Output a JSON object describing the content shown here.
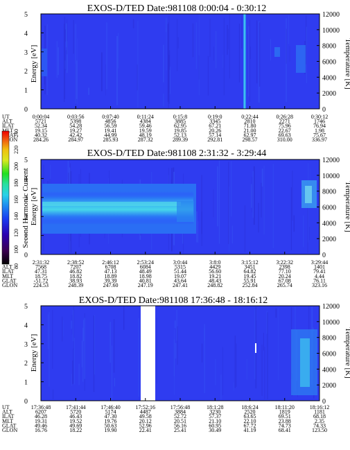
{
  "chart_data": [
    {
      "type": "heatmap",
      "title": "EXOS-D/TED",
      "date_label": "Date:981108",
      "time_range": "0:00:04 - 0:30:12",
      "ylabel": "Energy [eV]",
      "y2label": "Temperature [K]",
      "ylim": [
        0,
        5
      ],
      "y2lim": [
        0,
        12000
      ],
      "yticks": [
        "0",
        "1",
        "2",
        "3",
        "4",
        "5"
      ],
      "y2ticks": [
        "0",
        "2000",
        "4000",
        "6000",
        "8000",
        "10000",
        "12000"
      ],
      "ephemeris_labels": [
        "UT",
        "ALT",
        "ILAT",
        "MLT",
        "GLAT",
        "GLON"
      ],
      "ephemeris_columns": [
        [
          "0:00:04",
          "5721",
          "52.34",
          "19.15",
          "40.32",
          "284.26"
        ],
        [
          "0:03:56",
          "5398",
          "54.28",
          "19.27",
          "42.42",
          "284.97"
        ],
        [
          "0:07:40",
          "4856",
          "56.59",
          "19.41",
          "44.99",
          "285.93"
        ],
        [
          "0:11:24",
          "4384",
          "59.46",
          "19.59",
          "48.19",
          "287.32"
        ],
        [
          "0:15:8",
          "3885",
          "62.95",
          "19.85",
          "52.13",
          "289.39"
        ],
        [
          "0:19:0",
          "3345",
          "67.21",
          "20.26",
          "57.14",
          "292.81"
        ],
        [
          "0:22:44",
          "2810",
          "71.80",
          "21.00",
          "62.97",
          "298.57"
        ],
        [
          "0:26:28",
          "2271",
          "75.96",
          "22.67",
          "69.63",
          "310.00"
        ],
        [
          "0:30:12",
          "1746",
          "76.94",
          "1.98",
          "75.67",
          "336.97"
        ]
      ],
      "background_level": "blue (~150 on colour scale)",
      "features": [
        "vertical high-intensity stripe near 0:22:44 spanning all energies",
        "weak enhancements between 0:26:28 and 0:30:12 around 2-3 eV"
      ]
    },
    {
      "type": "heatmap",
      "title": "EXOS-D/TED",
      "date_label": "Date:981108",
      "time_range": "2:31:32 - 3:29:44",
      "ylabel": "Energy [eV]",
      "y2label": "Temperature [K]",
      "ylim": [
        0,
        5
      ],
      "y2lim": [
        0,
        12000
      ],
      "yticks": [
        "0",
        "1",
        "2",
        "3",
        "4",
        "5"
      ],
      "y2ticks": [
        "0",
        "2000",
        "4000",
        "6000",
        "8000",
        "10000",
        "12000"
      ],
      "ephemeris_labels": [
        "UT",
        "ALT",
        "ILAT",
        "MLT",
        "GLAT",
        "GLON"
      ],
      "ephemeris_columns": [
        [
          "2:31:32",
          "7568",
          "47.31",
          "18.75",
          "-51.72",
          "224.53"
        ],
        [
          "2:38:52",
          "7207",
          "46.82",
          "18.82",
          "38.93",
          "248.39"
        ],
        [
          "2:46:12",
          "6708",
          "47.13",
          "18.89",
          "39.39",
          "247.60"
        ],
        [
          "2:53:24",
          "6084",
          "48.49",
          "18.98",
          "40.81",
          "247.19"
        ],
        [
          "3:0:44",
          "5315",
          "51.44",
          "19.07",
          "43.64",
          "247.41"
        ],
        [
          "3:8:0",
          "4429",
          "56.60",
          "19.21",
          "48.43",
          "248.82"
        ],
        [
          "3:15:12",
          "3451",
          "64.82",
          "19.45",
          "55.91",
          "252.84"
        ],
        [
          "3:22:32",
          "2398",
          "77.10",
          "20.24",
          "67.08",
          "265.74"
        ],
        [
          "3:29:44",
          "1401",
          "79.41",
          "4.44",
          "76.11",
          "323.16"
        ]
      ],
      "features": [
        "intense band 1.3-3.4 eV from 2:31:32 to about 3:0:44, peak near 2.1-2.4 eV",
        "scattered dots near 3 eV around 3:0:44",
        "enhancement near 2-3.5 eV at 3:29:44"
      ],
      "colorbar": {
        "label": "Second Harmonic Current",
        "ticks": [
          "80",
          "100",
          "120",
          "140",
          "160",
          "180",
          "200",
          "220",
          "240"
        ],
        "range": [
          80,
          240
        ]
      }
    },
    {
      "type": "heatmap",
      "title": "EXOS-D/TED",
      "date_label": "Date:981108",
      "time_range": "17:36:48 - 18:16:12",
      "ylabel": "Energy [eV]",
      "y2label": "Temperature [K]",
      "ylim": [
        0,
        5
      ],
      "y2lim": [
        0,
        12000
      ],
      "yticks": [
        "0",
        "1",
        "2",
        "3",
        "4",
        "5"
      ],
      "y2ticks": [
        "0",
        "2000",
        "4000",
        "6000",
        "8000",
        "10000",
        "12000"
      ],
      "ephemeris_labels": [
        "UT",
        "ALT",
        "ILAT",
        "MLT",
        "GLAT",
        "GLON"
      ],
      "ephemeris_columns": [
        [
          "17:36:48",
          "6207",
          "46.28",
          "19.31",
          "49.46",
          "16.76"
        ],
        [
          "17:41:44",
          "5720",
          "46.43",
          "19.52",
          "49.69",
          "18.22"
        ],
        [
          "17:46:40",
          "5174",
          "47.30",
          "19.76",
          "50.63",
          "19.90"
        ],
        [
          "17:52:16",
          "4487",
          "49.58",
          "20.12",
          "52.96",
          "22.41"
        ],
        [
          "17:56:48",
          "3884",
          "52.72",
          "20.51",
          "56.16",
          "25.41"
        ],
        [
          "18:1:28",
          "3230",
          "57.37",
          "21.10",
          "60.95",
          "30.49"
        ],
        [
          "18:6:24",
          "2520",
          "63.65",
          "22.10",
          "67.72",
          "41.19"
        ],
        [
          "18:11:20",
          "1819",
          "69.51",
          "23.88",
          "74.73",
          "68.41"
        ],
        [
          "18:16:12",
          "1181",
          "68.18",
          "2.35",
          "74.33",
          "123.50"
        ]
      ],
      "data_gap": "between about 17:49 and 17:51",
      "features": [
        "bright enhancements up to ~3.5 eV after 18:6:24",
        "scattered streaks throughout"
      ]
    }
  ]
}
